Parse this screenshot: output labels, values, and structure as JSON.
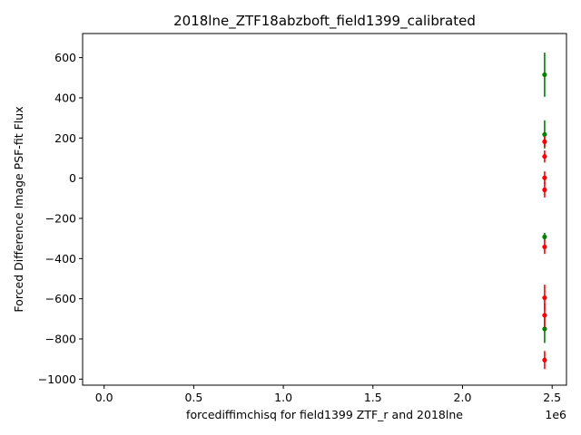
{
  "chart_data": {
    "type": "scatter",
    "title": "2018lne_ZTF18abzboft_field1399_calibrated",
    "xlabel": "forcediffimchisq for field1399 ZTF_r and 2018lne",
    "ylabel": "Forced Difference Image PSF-fit Flux",
    "x_offset_label": "1e6",
    "xlim": [
      -0.12,
      2.58
    ],
    "ylim": [
      -1030,
      720
    ],
    "x_ticks": [
      0.0,
      0.5,
      1.0,
      1.5,
      2.0,
      2.5
    ],
    "x_tick_labels": [
      "0.0",
      "0.5",
      "1.0",
      "1.5",
      "2.0",
      "2.5"
    ],
    "y_ticks": [
      -1000,
      -800,
      -600,
      -400,
      -200,
      0,
      200,
      400,
      600
    ],
    "y_tick_labels": [
      "−1000",
      "−800",
      "−600",
      "−400",
      "−200",
      "0",
      "200",
      "400",
      "600"
    ],
    "grid": false,
    "series": [
      {
        "color": "#008000",
        "points": [
          {
            "x": 2.458,
            "y": 515,
            "err": 110
          },
          {
            "x": 2.458,
            "y": 218,
            "err": 70
          },
          {
            "x": 2.458,
            "y": -292,
            "err": 20
          },
          {
            "x": 2.458,
            "y": -750,
            "err": 70
          }
        ]
      },
      {
        "color": "#ff0000",
        "points": [
          {
            "x": 2.458,
            "y": 182,
            "err": 28
          },
          {
            "x": 2.458,
            "y": 108,
            "err": 30
          },
          {
            "x": 2.458,
            "y": 2,
            "err": 32
          },
          {
            "x": 2.458,
            "y": -58,
            "err": 38
          },
          {
            "x": 2.458,
            "y": -342,
            "err": 35
          },
          {
            "x": 2.458,
            "y": -595,
            "err": 65
          },
          {
            "x": 2.458,
            "y": -682,
            "err": 60
          },
          {
            "x": 2.458,
            "y": -905,
            "err": 45
          }
        ]
      }
    ]
  }
}
